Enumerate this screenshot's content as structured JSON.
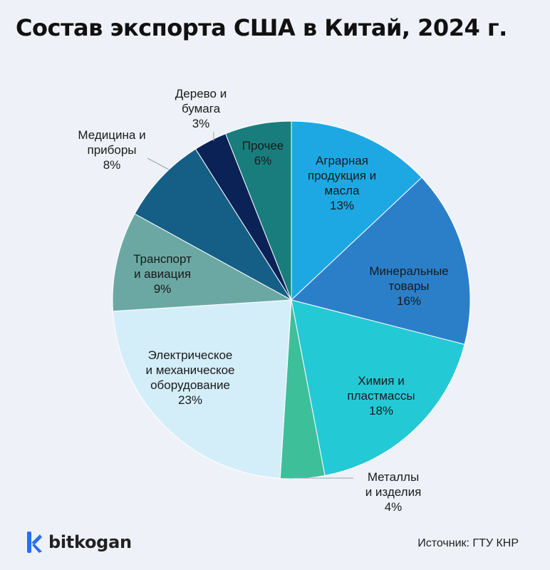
{
  "title": "Состав экспорта США в Китай, 2024 г.",
  "chart_data": {
    "type": "pie",
    "start_angle_deg": 0,
    "direction": "clockwise",
    "slices": [
      {
        "label": [
          "Аграрная",
          "продукция и",
          "масла"
        ],
        "value": 13,
        "pct": "13%",
        "color": "#1ea8e3"
      },
      {
        "label": [
          "Минеральные",
          "товары"
        ],
        "value": 16,
        "pct": "16%",
        "color": "#2b7fc8"
      },
      {
        "label": [
          "Химия и",
          "пластмассы"
        ],
        "value": 18,
        "pct": "18%",
        "color": "#24c9d6"
      },
      {
        "label": [
          "Металлы",
          "и изделия"
        ],
        "value": 4,
        "pct": "4%",
        "color": "#3dbf9a"
      },
      {
        "label": [
          "Электрическое",
          "и механическое",
          "оборудование"
        ],
        "value": 23,
        "pct": "23%",
        "color": "#d4eef9"
      },
      {
        "label": [
          "Транспорт",
          "и авиация"
        ],
        "value": 9,
        "pct": "9%",
        "color": "#6ba8a3"
      },
      {
        "label": [
          "Медицина и",
          "приборы"
        ],
        "value": 8,
        "pct": "8%",
        "color": "#155f87"
      },
      {
        "label": [
          "Дерево и",
          "бумага"
        ],
        "value": 3,
        "pct": "3%",
        "color": "#0b2257"
      },
      {
        "label": [
          "Прочее"
        ],
        "value": 6,
        "pct": "6%",
        "color": "#1a7d7d"
      }
    ]
  },
  "footer": {
    "brand": "bitkogan",
    "source": "Источник: ГТУ КНР"
  }
}
